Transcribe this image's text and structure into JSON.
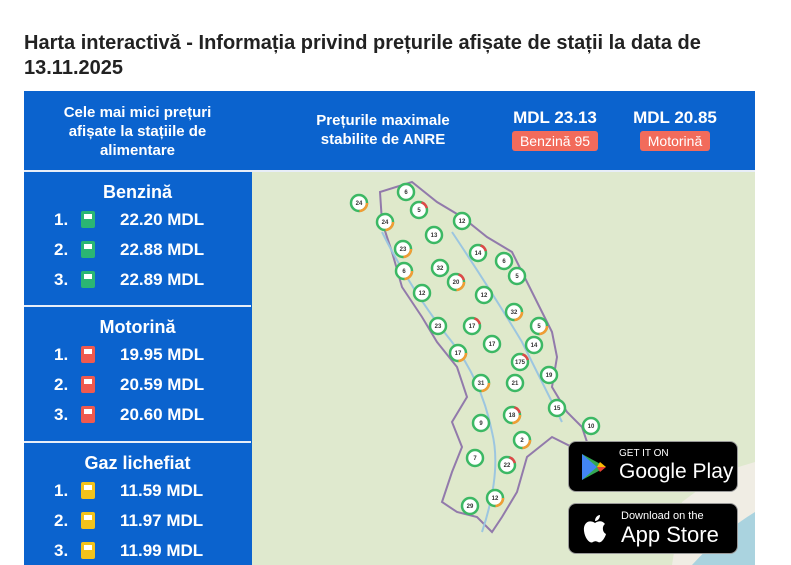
{
  "header": {
    "title": "Harta interactivă - Informația privind prețurile afișate de stații la data de 13.11.2025",
    "lowest_prices_label": "Cele mai mici prețuri afișate la stațiile de alimentare",
    "max_prices_label": "Prețurile maximale stabilite de ANRE",
    "max_prices": [
      {
        "price": "MDL 23.13",
        "fuel": "Benzină 95"
      },
      {
        "price": "MDL 20.85",
        "fuel": "Motorină"
      }
    ]
  },
  "fuels": [
    {
      "name": "Benzină",
      "prices": [
        {
          "rank": "1.",
          "price": "22.20 MDL"
        },
        {
          "rank": "2.",
          "price": "22.88 MDL"
        },
        {
          "rank": "3.",
          "price": "22.89 MDL"
        }
      ]
    },
    {
      "name": "Motorină",
      "prices": [
        {
          "rank": "1.",
          "price": "19.95 MDL"
        },
        {
          "rank": "2.",
          "price": "20.59 MDL"
        },
        {
          "rank": "3.",
          "price": "20.60 MDL"
        }
      ]
    },
    {
      "name": "Gaz lichefiat",
      "prices": [
        {
          "rank": "1.",
          "price": "11.59 MDL"
        },
        {
          "rank": "2.",
          "price": "11.97 MDL"
        },
        {
          "rank": "3.",
          "price": "11.99 MDL"
        }
      ]
    }
  ],
  "map": {
    "clusters": [
      24,
      6,
      5,
      24,
      12,
      13,
      23,
      14,
      6,
      6,
      32,
      5,
      20,
      12,
      12,
      32,
      23,
      17,
      5,
      17,
      14,
      17,
      175,
      19,
      31,
      21,
      15,
      18,
      9,
      10,
      2,
      7,
      22,
      12,
      29
    ]
  },
  "apps": {
    "google": {
      "small": "GET IT ON",
      "big": "Google Play"
    },
    "apple": {
      "small": "Download on the",
      "big": "App Store"
    }
  }
}
